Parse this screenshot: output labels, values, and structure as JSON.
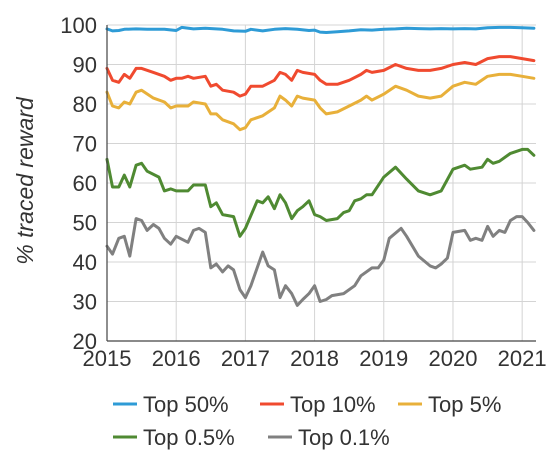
{
  "chart_data": {
    "type": "line",
    "title": "",
    "xlabel": "",
    "ylabel": "% traced reward",
    "xlim": [
      2015,
      2021.2
    ],
    "ylim": [
      20,
      100
    ],
    "xticks": [
      2015,
      2016,
      2017,
      2018,
      2019,
      2020,
      2021
    ],
    "xtick_labels": [
      "2015",
      "2016",
      "2017",
      "2018",
      "2019",
      "2020",
      "2021"
    ],
    "yticks": [
      20,
      30,
      40,
      50,
      60,
      70,
      80,
      90,
      100
    ],
    "ytick_labels": [
      "20",
      "30",
      "40",
      "50",
      "60",
      "70",
      "80",
      "90",
      "100"
    ],
    "grid": true,
    "legend_placement": "bottom",
    "series": [
      {
        "name": "Top 50%",
        "color": "#2e9bd6",
        "points": [
          [
            2015.0,
            99.0
          ],
          [
            2015.08,
            98.5
          ],
          [
            2015.17,
            98.6
          ],
          [
            2015.25,
            98.9
          ],
          [
            2015.42,
            99.0
          ],
          [
            2015.58,
            98.9
          ],
          [
            2015.83,
            98.9
          ],
          [
            2016.0,
            98.6
          ],
          [
            2016.08,
            99.4
          ],
          [
            2016.25,
            99.0
          ],
          [
            2016.42,
            99.2
          ],
          [
            2016.67,
            98.9
          ],
          [
            2016.83,
            98.5
          ],
          [
            2017.0,
            98.4
          ],
          [
            2017.08,
            98.9
          ],
          [
            2017.25,
            98.5
          ],
          [
            2017.42,
            98.9
          ],
          [
            2017.58,
            99.1
          ],
          [
            2017.75,
            98.9
          ],
          [
            2017.92,
            98.6
          ],
          [
            2018.0,
            98.7
          ],
          [
            2018.08,
            98.2
          ],
          [
            2018.17,
            98.1
          ],
          [
            2018.33,
            98.3
          ],
          [
            2018.5,
            98.5
          ],
          [
            2018.67,
            98.8
          ],
          [
            2018.83,
            98.7
          ],
          [
            2019.0,
            98.9
          ],
          [
            2019.17,
            99.0
          ],
          [
            2019.33,
            99.2
          ],
          [
            2019.5,
            99.1
          ],
          [
            2019.67,
            99.0
          ],
          [
            2019.83,
            99.1
          ],
          [
            2020.0,
            99.0
          ],
          [
            2020.17,
            99.1
          ],
          [
            2020.33,
            99.0
          ],
          [
            2020.5,
            99.3
          ],
          [
            2020.67,
            99.4
          ],
          [
            2020.83,
            99.4
          ],
          [
            2021.0,
            99.3
          ],
          [
            2021.17,
            99.2
          ]
        ]
      },
      {
        "name": "Top 10%",
        "color": "#f04a2f",
        "points": [
          [
            2015.0,
            89.0
          ],
          [
            2015.08,
            86.0
          ],
          [
            2015.17,
            85.5
          ],
          [
            2015.25,
            87.5
          ],
          [
            2015.33,
            86.5
          ],
          [
            2015.42,
            89.0
          ],
          [
            2015.5,
            89.0
          ],
          [
            2015.67,
            88.0
          ],
          [
            2015.83,
            87.0
          ],
          [
            2015.92,
            86.0
          ],
          [
            2016.0,
            86.5
          ],
          [
            2016.08,
            86.5
          ],
          [
            2016.17,
            87.0
          ],
          [
            2016.25,
            86.5
          ],
          [
            2016.42,
            87.0
          ],
          [
            2016.5,
            84.5
          ],
          [
            2016.58,
            85.0
          ],
          [
            2016.67,
            83.5
          ],
          [
            2016.83,
            83.0
          ],
          [
            2016.92,
            82.0
          ],
          [
            2017.0,
            82.5
          ],
          [
            2017.08,
            84.5
          ],
          [
            2017.25,
            84.5
          ],
          [
            2017.42,
            86.0
          ],
          [
            2017.5,
            88.0
          ],
          [
            2017.58,
            87.5
          ],
          [
            2017.67,
            86.0
          ],
          [
            2017.75,
            88.5
          ],
          [
            2017.83,
            88.0
          ],
          [
            2018.0,
            87.5
          ],
          [
            2018.08,
            86.0
          ],
          [
            2018.17,
            85.0
          ],
          [
            2018.33,
            85.0
          ],
          [
            2018.5,
            86.0
          ],
          [
            2018.67,
            87.5
          ],
          [
            2018.75,
            88.5
          ],
          [
            2018.83,
            88.0
          ],
          [
            2019.0,
            88.5
          ],
          [
            2019.17,
            90.0
          ],
          [
            2019.33,
            89.0
          ],
          [
            2019.5,
            88.5
          ],
          [
            2019.67,
            88.5
          ],
          [
            2019.83,
            89.0
          ],
          [
            2020.0,
            90.0
          ],
          [
            2020.17,
            90.5
          ],
          [
            2020.33,
            90.0
          ],
          [
            2020.5,
            91.5
          ],
          [
            2020.67,
            92.0
          ],
          [
            2020.83,
            92.0
          ],
          [
            2021.0,
            91.5
          ],
          [
            2021.17,
            91.0
          ]
        ]
      },
      {
        "name": "Top 5%",
        "color": "#e8b03a",
        "points": [
          [
            2015.0,
            83.0
          ],
          [
            2015.08,
            79.5
          ],
          [
            2015.17,
            79.0
          ],
          [
            2015.25,
            80.5
          ],
          [
            2015.33,
            80.0
          ],
          [
            2015.42,
            83.0
          ],
          [
            2015.5,
            83.5
          ],
          [
            2015.67,
            81.5
          ],
          [
            2015.83,
            80.5
          ],
          [
            2015.92,
            79.0
          ],
          [
            2016.0,
            79.5
          ],
          [
            2016.17,
            79.5
          ],
          [
            2016.25,
            80.5
          ],
          [
            2016.42,
            80.0
          ],
          [
            2016.5,
            77.5
          ],
          [
            2016.58,
            77.5
          ],
          [
            2016.67,
            76.0
          ],
          [
            2016.83,
            75.0
          ],
          [
            2016.92,
            73.5
          ],
          [
            2017.0,
            74.0
          ],
          [
            2017.08,
            76.0
          ],
          [
            2017.25,
            77.0
          ],
          [
            2017.42,
            79.0
          ],
          [
            2017.5,
            82.0
          ],
          [
            2017.58,
            81.0
          ],
          [
            2017.67,
            79.5
          ],
          [
            2017.75,
            82.0
          ],
          [
            2017.83,
            81.5
          ],
          [
            2018.0,
            81.0
          ],
          [
            2018.08,
            79.0
          ],
          [
            2018.17,
            77.5
          ],
          [
            2018.33,
            78.0
          ],
          [
            2018.5,
            79.5
          ],
          [
            2018.67,
            81.0
          ],
          [
            2018.75,
            82.0
          ],
          [
            2018.83,
            81.0
          ],
          [
            2019.0,
            82.5
          ],
          [
            2019.17,
            84.5
          ],
          [
            2019.33,
            83.5
          ],
          [
            2019.5,
            82.0
          ],
          [
            2019.67,
            81.5
          ],
          [
            2019.83,
            82.0
          ],
          [
            2020.0,
            84.5
          ],
          [
            2020.17,
            85.5
          ],
          [
            2020.33,
            85.0
          ],
          [
            2020.5,
            87.0
          ],
          [
            2020.67,
            87.5
          ],
          [
            2020.83,
            87.5
          ],
          [
            2021.0,
            87.0
          ],
          [
            2021.17,
            86.5
          ]
        ]
      },
      {
        "name": "Top 0.5%",
        "color": "#4f8a32",
        "points": [
          [
            2015.0,
            66.0
          ],
          [
            2015.08,
            59.0
          ],
          [
            2015.17,
            59.0
          ],
          [
            2015.25,
            62.0
          ],
          [
            2015.33,
            59.0
          ],
          [
            2015.42,
            64.5
          ],
          [
            2015.5,
            65.0
          ],
          [
            2015.58,
            63.0
          ],
          [
            2015.75,
            61.5
          ],
          [
            2015.83,
            58.0
          ],
          [
            2015.92,
            58.5
          ],
          [
            2016.0,
            58.0
          ],
          [
            2016.17,
            58.0
          ],
          [
            2016.25,
            59.5
          ],
          [
            2016.42,
            59.5
          ],
          [
            2016.5,
            54.0
          ],
          [
            2016.58,
            55.0
          ],
          [
            2016.67,
            52.0
          ],
          [
            2016.83,
            51.5
          ],
          [
            2016.92,
            46.5
          ],
          [
            2017.0,
            48.5
          ],
          [
            2017.17,
            55.5
          ],
          [
            2017.25,
            55.0
          ],
          [
            2017.33,
            56.5
          ],
          [
            2017.42,
            53.5
          ],
          [
            2017.5,
            57.0
          ],
          [
            2017.58,
            55.0
          ],
          [
            2017.67,
            51.0
          ],
          [
            2017.75,
            53.0
          ],
          [
            2017.83,
            54.0
          ],
          [
            2017.92,
            55.5
          ],
          [
            2018.0,
            52.0
          ],
          [
            2018.08,
            51.5
          ],
          [
            2018.17,
            50.5
          ],
          [
            2018.33,
            51.0
          ],
          [
            2018.42,
            52.5
          ],
          [
            2018.5,
            53.0
          ],
          [
            2018.58,
            55.5
          ],
          [
            2018.67,
            56.0
          ],
          [
            2018.75,
            57.0
          ],
          [
            2018.83,
            57.0
          ],
          [
            2019.0,
            61.5
          ],
          [
            2019.17,
            64.0
          ],
          [
            2019.33,
            61.0
          ],
          [
            2019.5,
            58.0
          ],
          [
            2019.67,
            57.0
          ],
          [
            2019.83,
            58.0
          ],
          [
            2020.0,
            63.5
          ],
          [
            2020.17,
            64.5
          ],
          [
            2020.25,
            63.5
          ],
          [
            2020.42,
            64.0
          ],
          [
            2020.5,
            66.0
          ],
          [
            2020.58,
            65.0
          ],
          [
            2020.67,
            65.5
          ],
          [
            2020.83,
            67.5
          ],
          [
            2021.0,
            68.5
          ],
          [
            2021.08,
            68.5
          ],
          [
            2021.17,
            67.0
          ]
        ]
      },
      {
        "name": "Top 0.1%",
        "color": "#808080",
        "points": [
          [
            2015.0,
            44.0
          ],
          [
            2015.08,
            42.0
          ],
          [
            2015.17,
            46.0
          ],
          [
            2015.25,
            46.5
          ],
          [
            2015.33,
            41.5
          ],
          [
            2015.42,
            51.0
          ],
          [
            2015.5,
            50.5
          ],
          [
            2015.58,
            48.0
          ],
          [
            2015.67,
            49.5
          ],
          [
            2015.75,
            48.5
          ],
          [
            2015.83,
            46.0
          ],
          [
            2015.92,
            44.5
          ],
          [
            2016.0,
            46.5
          ],
          [
            2016.17,
            45.0
          ],
          [
            2016.25,
            48.0
          ],
          [
            2016.33,
            48.5
          ],
          [
            2016.42,
            47.5
          ],
          [
            2016.5,
            38.5
          ],
          [
            2016.58,
            39.5
          ],
          [
            2016.67,
            37.5
          ],
          [
            2016.75,
            39.0
          ],
          [
            2016.83,
            38.0
          ],
          [
            2016.92,
            33.0
          ],
          [
            2017.0,
            31.0
          ],
          [
            2017.08,
            34.0
          ],
          [
            2017.25,
            42.5
          ],
          [
            2017.33,
            39.0
          ],
          [
            2017.42,
            38.0
          ],
          [
            2017.5,
            31.0
          ],
          [
            2017.58,
            34.0
          ],
          [
            2017.67,
            32.0
          ],
          [
            2017.75,
            29.0
          ],
          [
            2017.83,
            30.5
          ],
          [
            2017.92,
            32.0
          ],
          [
            2018.0,
            34.0
          ],
          [
            2018.08,
            30.0
          ],
          [
            2018.17,
            30.5
          ],
          [
            2018.25,
            31.5
          ],
          [
            2018.42,
            32.0
          ],
          [
            2018.58,
            34.0
          ],
          [
            2018.67,
            36.5
          ],
          [
            2018.83,
            38.5
          ],
          [
            2018.92,
            38.5
          ],
          [
            2019.0,
            40.5
          ],
          [
            2019.08,
            46.0
          ],
          [
            2019.25,
            48.5
          ],
          [
            2019.33,
            46.5
          ],
          [
            2019.5,
            41.5
          ],
          [
            2019.67,
            39.0
          ],
          [
            2019.75,
            38.5
          ],
          [
            2019.83,
            39.5
          ],
          [
            2019.92,
            41.0
          ],
          [
            2020.0,
            47.5
          ],
          [
            2020.17,
            48.0
          ],
          [
            2020.25,
            45.5
          ],
          [
            2020.33,
            46.0
          ],
          [
            2020.42,
            45.5
          ],
          [
            2020.5,
            49.0
          ],
          [
            2020.58,
            46.5
          ],
          [
            2020.67,
            48.0
          ],
          [
            2020.75,
            47.5
          ],
          [
            2020.83,
            50.5
          ],
          [
            2020.92,
            51.5
          ],
          [
            2021.0,
            51.5
          ],
          [
            2021.08,
            50.0
          ],
          [
            2021.17,
            48.0
          ]
        ]
      }
    ]
  }
}
